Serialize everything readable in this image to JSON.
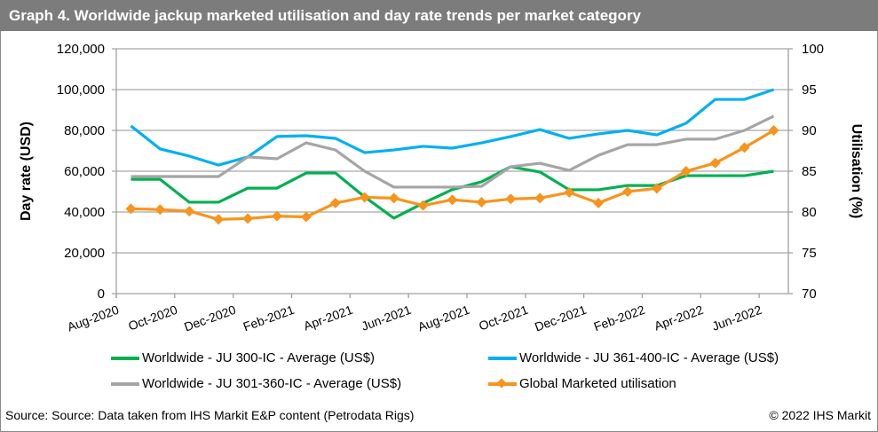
{
  "chart_data": {
    "type": "line",
    "title": "Graph 4. Worldwide jackup marketed utilisation and day rate trends per market category",
    "x": [
      "Aug-2020",
      "Sep-2020",
      "Oct-2020",
      "Nov-2020",
      "Dec-2020",
      "Jan-2021",
      "Feb-2021",
      "Mar-2021",
      "Apr-2021",
      "May-2021",
      "Jun-2021",
      "Jul-2021",
      "Aug-2021",
      "Sep-2021",
      "Oct-2021",
      "Nov-2021",
      "Dec-2021",
      "Jan-2022",
      "Feb-2022",
      "Mar-2022",
      "Apr-2022",
      "May-2022",
      "Jun-2022"
    ],
    "xtick_labels": [
      "Aug-2020",
      "Oct-2020",
      "Dec-2020",
      "Feb-2021",
      "Apr-2021",
      "Jun-2021",
      "Aug-2021",
      "Oct-2021",
      "Dec-2021",
      "Feb-2022",
      "Apr-2022",
      "Jun-2022"
    ],
    "ylabel": "Day rate (USD)",
    "ylim": [
      0,
      120000
    ],
    "yticks": [
      "0",
      "20,000",
      "40,000",
      "60,000",
      "80,000",
      "100,000",
      "120,000"
    ],
    "y2label": "Utilisation (%)",
    "y2lim": [
      70,
      100
    ],
    "y2ticks": [
      "70",
      "75",
      "80",
      "85",
      "90",
      "95",
      "100"
    ],
    "grid": true,
    "legend_position": "bottom",
    "series": [
      {
        "name": "Worldwide - JU 300-IC - Average (US$)",
        "axis": "left",
        "color": "#00b050",
        "marker": false,
        "values": [
          56000,
          56000,
          44800,
          44800,
          51700,
          51700,
          59100,
          59100,
          47400,
          37000,
          44300,
          51000,
          54800,
          62200,
          59600,
          50900,
          50900,
          53000,
          53000,
          57800,
          57800,
          57800,
          60000
        ]
      },
      {
        "name": "Worldwide - JU 361-400-IC - Average (US$)",
        "axis": "left",
        "color": "#00b0f0",
        "marker": false,
        "values": [
          82200,
          70900,
          67400,
          63000,
          67000,
          77000,
          77400,
          76100,
          69100,
          70400,
          72200,
          71300,
          73900,
          77000,
          80400,
          76100,
          78300,
          80000,
          77800,
          83500,
          95200,
          95200,
          100000
        ]
      },
      {
        "name": "Worldwide - JU 301-360-IC - Average (US$)",
        "axis": "left",
        "color": "#a5a5a5",
        "marker": false,
        "values": [
          57400,
          57400,
          57400,
          57400,
          67000,
          66100,
          73900,
          70400,
          60000,
          52200,
          52200,
          52200,
          52600,
          62200,
          63900,
          60400,
          67800,
          73000,
          73000,
          75700,
          75700,
          80000,
          87000
        ]
      },
      {
        "name": "Global Marketed utilisation",
        "axis": "right",
        "color": "#f7941d",
        "marker": true,
        "values": [
          80.4,
          80.3,
          80.1,
          79.1,
          79.2,
          79.5,
          79.4,
          81.1,
          81.8,
          81.7,
          80.8,
          81.5,
          81.2,
          81.6,
          81.7,
          82.4,
          81.1,
          82.5,
          82.9,
          85.0,
          86.0,
          87.9,
          90.0
        ]
      }
    ]
  },
  "footer": {
    "source": "Source: Source: Data taken from IHS Markit E&P content (Petrodata Rigs)",
    "copyright": "© 2022 IHS Markit"
  }
}
